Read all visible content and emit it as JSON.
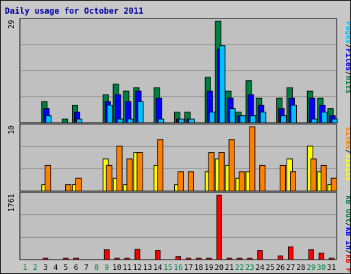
{
  "chart_data": [
    {
      "type": "bar",
      "title": "Daily usage for October 2011",
      "panel": "hits-files-pages",
      "ymax_label": "29",
      "ylim": [
        0,
        29
      ],
      "legend": [
        {
          "label": "Hits",
          "color": "#008040"
        },
        {
          "label": "Files",
          "color": "#0000ff"
        },
        {
          "label": "Pages",
          "color": "#00c0ff"
        }
      ],
      "x": [
        1,
        2,
        3,
        4,
        5,
        6,
        7,
        8,
        9,
        10,
        11,
        12,
        13,
        14,
        15,
        16,
        17,
        18,
        19,
        20,
        21,
        22,
        23,
        24,
        25,
        26,
        27,
        28,
        29,
        30,
        31
      ],
      "series": [
        {
          "name": "Hits",
          "values": [
            0,
            0,
            6,
            0,
            1,
            5,
            0,
            0,
            8,
            11,
            9,
            10,
            0,
            10,
            0,
            3,
            3,
            0,
            13,
            29,
            9,
            3,
            12,
            7,
            0,
            7,
            10,
            0,
            9,
            7,
            4
          ]
        },
        {
          "name": "Files",
          "values": [
            0,
            0,
            4,
            0,
            0,
            3,
            0,
            0,
            6,
            8,
            6,
            9,
            0,
            7,
            0,
            1,
            1,
            0,
            9,
            21,
            7,
            2,
            8,
            5,
            0,
            4,
            7,
            0,
            7,
            5,
            2
          ]
        },
        {
          "name": "Pages",
          "values": [
            0,
            0,
            2,
            0,
            0,
            1,
            0,
            0,
            5,
            1,
            1,
            6,
            0,
            1,
            0,
            1,
            1,
            0,
            3,
            22,
            4,
            2,
            2,
            3,
            0,
            2,
            5,
            0,
            1,
            3,
            1
          ]
        }
      ]
    },
    {
      "type": "bar",
      "panel": "visits-sites",
      "ymax_label": "10",
      "ylim": [
        0,
        10
      ],
      "legend": [
        {
          "label": "Visits",
          "color": "#ffff00"
        },
        {
          "label": "Sites",
          "color": "#ff8000"
        }
      ],
      "x": [
        1,
        2,
        3,
        4,
        5,
        6,
        7,
        8,
        9,
        10,
        11,
        12,
        13,
        14,
        15,
        16,
        17,
        18,
        19,
        20,
        21,
        22,
        23,
        24,
        25,
        26,
        27,
        28,
        29,
        30,
        31
      ],
      "series": [
        {
          "name": "Visits",
          "values": [
            0,
            0,
            1,
            0,
            0,
            1,
            0,
            0,
            5,
            2,
            1,
            6,
            0,
            4,
            0,
            1,
            0,
            0,
            3,
            5,
            4,
            2,
            3,
            0,
            0,
            0,
            5,
            0,
            7,
            3,
            1
          ]
        },
        {
          "name": "Sites",
          "values": [
            0,
            0,
            4,
            0,
            1,
            2,
            0,
            0,
            4,
            7,
            5,
            6,
            0,
            8,
            0,
            3,
            3,
            0,
            6,
            6,
            8,
            3,
            10,
            4,
            0,
            4,
            3,
            0,
            5,
            4,
            2
          ]
        }
      ]
    },
    {
      "type": "bar",
      "panel": "kbytes",
      "ymax_label": "1761",
      "ylim": [
        0,
        1761
      ],
      "legend": [
        {
          "label": "kB F",
          "color": "#ff0000"
        },
        {
          "label": "kB In",
          "color": "#0000ff"
        },
        {
          "label": "kB Out",
          "color": "#008040"
        }
      ],
      "x": [
        1,
        2,
        3,
        4,
        5,
        6,
        7,
        8,
        9,
        10,
        11,
        12,
        13,
        14,
        15,
        16,
        17,
        18,
        19,
        20,
        21,
        22,
        23,
        24,
        25,
        26,
        27,
        28,
        29,
        30,
        31
      ],
      "series": [
        {
          "name": "kB F",
          "values": [
            0,
            0,
            20,
            0,
            20,
            20,
            0,
            0,
            270,
            20,
            20,
            280,
            0,
            250,
            0,
            80,
            20,
            20,
            20,
            1761,
            20,
            20,
            20,
            250,
            0,
            100,
            350,
            0,
            270,
            180,
            30
          ]
        }
      ]
    }
  ],
  "x_tick_colors": {
    "weekday": "#000000",
    "weekend": "#008040"
  },
  "weekend_days": [
    1,
    2,
    8,
    9,
    15,
    16,
    22,
    23,
    29,
    30
  ]
}
